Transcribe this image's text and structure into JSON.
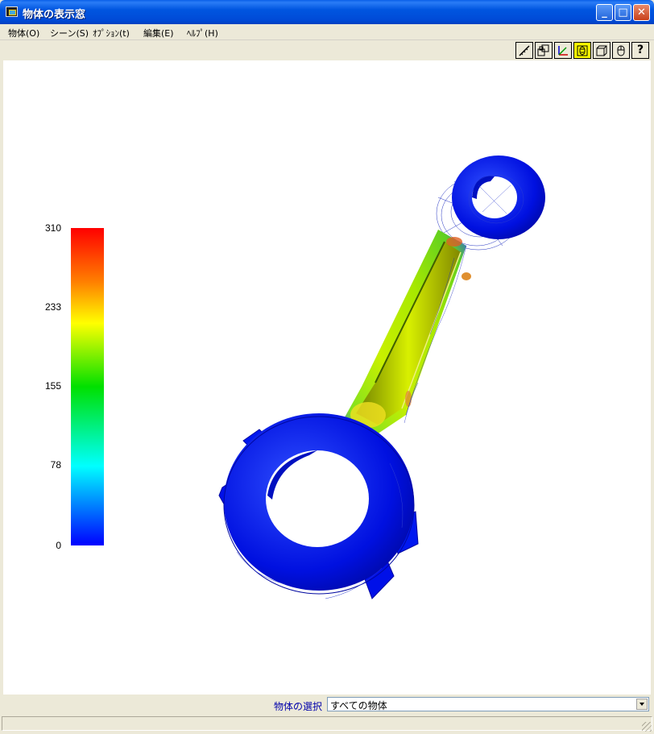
{
  "window": {
    "title": "物体の表示窓",
    "minimize_label": "_",
    "maximize_label": "□",
    "close_label": "✕"
  },
  "menu": {
    "items": [
      {
        "label": "物体(O)"
      },
      {
        "label": "シーン(S)"
      },
      {
        "label": "ｵﾌﾟｼｮﾝ(t)"
      },
      {
        "label": "編集(E)"
      },
      {
        "label": "ﾍﾙﾌﾟ(H)"
      }
    ]
  },
  "toolbar": {
    "buttons": [
      {
        "icon": "measure-icon"
      },
      {
        "icon": "layout-icon"
      },
      {
        "icon": "axis-icon"
      },
      {
        "icon": "fit-view-icon",
        "active": true
      },
      {
        "icon": "box-view-icon"
      },
      {
        "icon": "mouse-icon"
      },
      {
        "icon": "help-icon",
        "label": "?"
      }
    ],
    "active_color": "#ffff00"
  },
  "legend": {
    "labels": [
      "310",
      "233",
      "155",
      "78",
      "0"
    ],
    "colors": [
      "#0000ff",
      "#00ffff",
      "#00e000",
      "#ffff00",
      "#ff8000",
      "#ff0000"
    ]
  },
  "selection": {
    "label": "物体の選択",
    "value": "すべての物体"
  }
}
